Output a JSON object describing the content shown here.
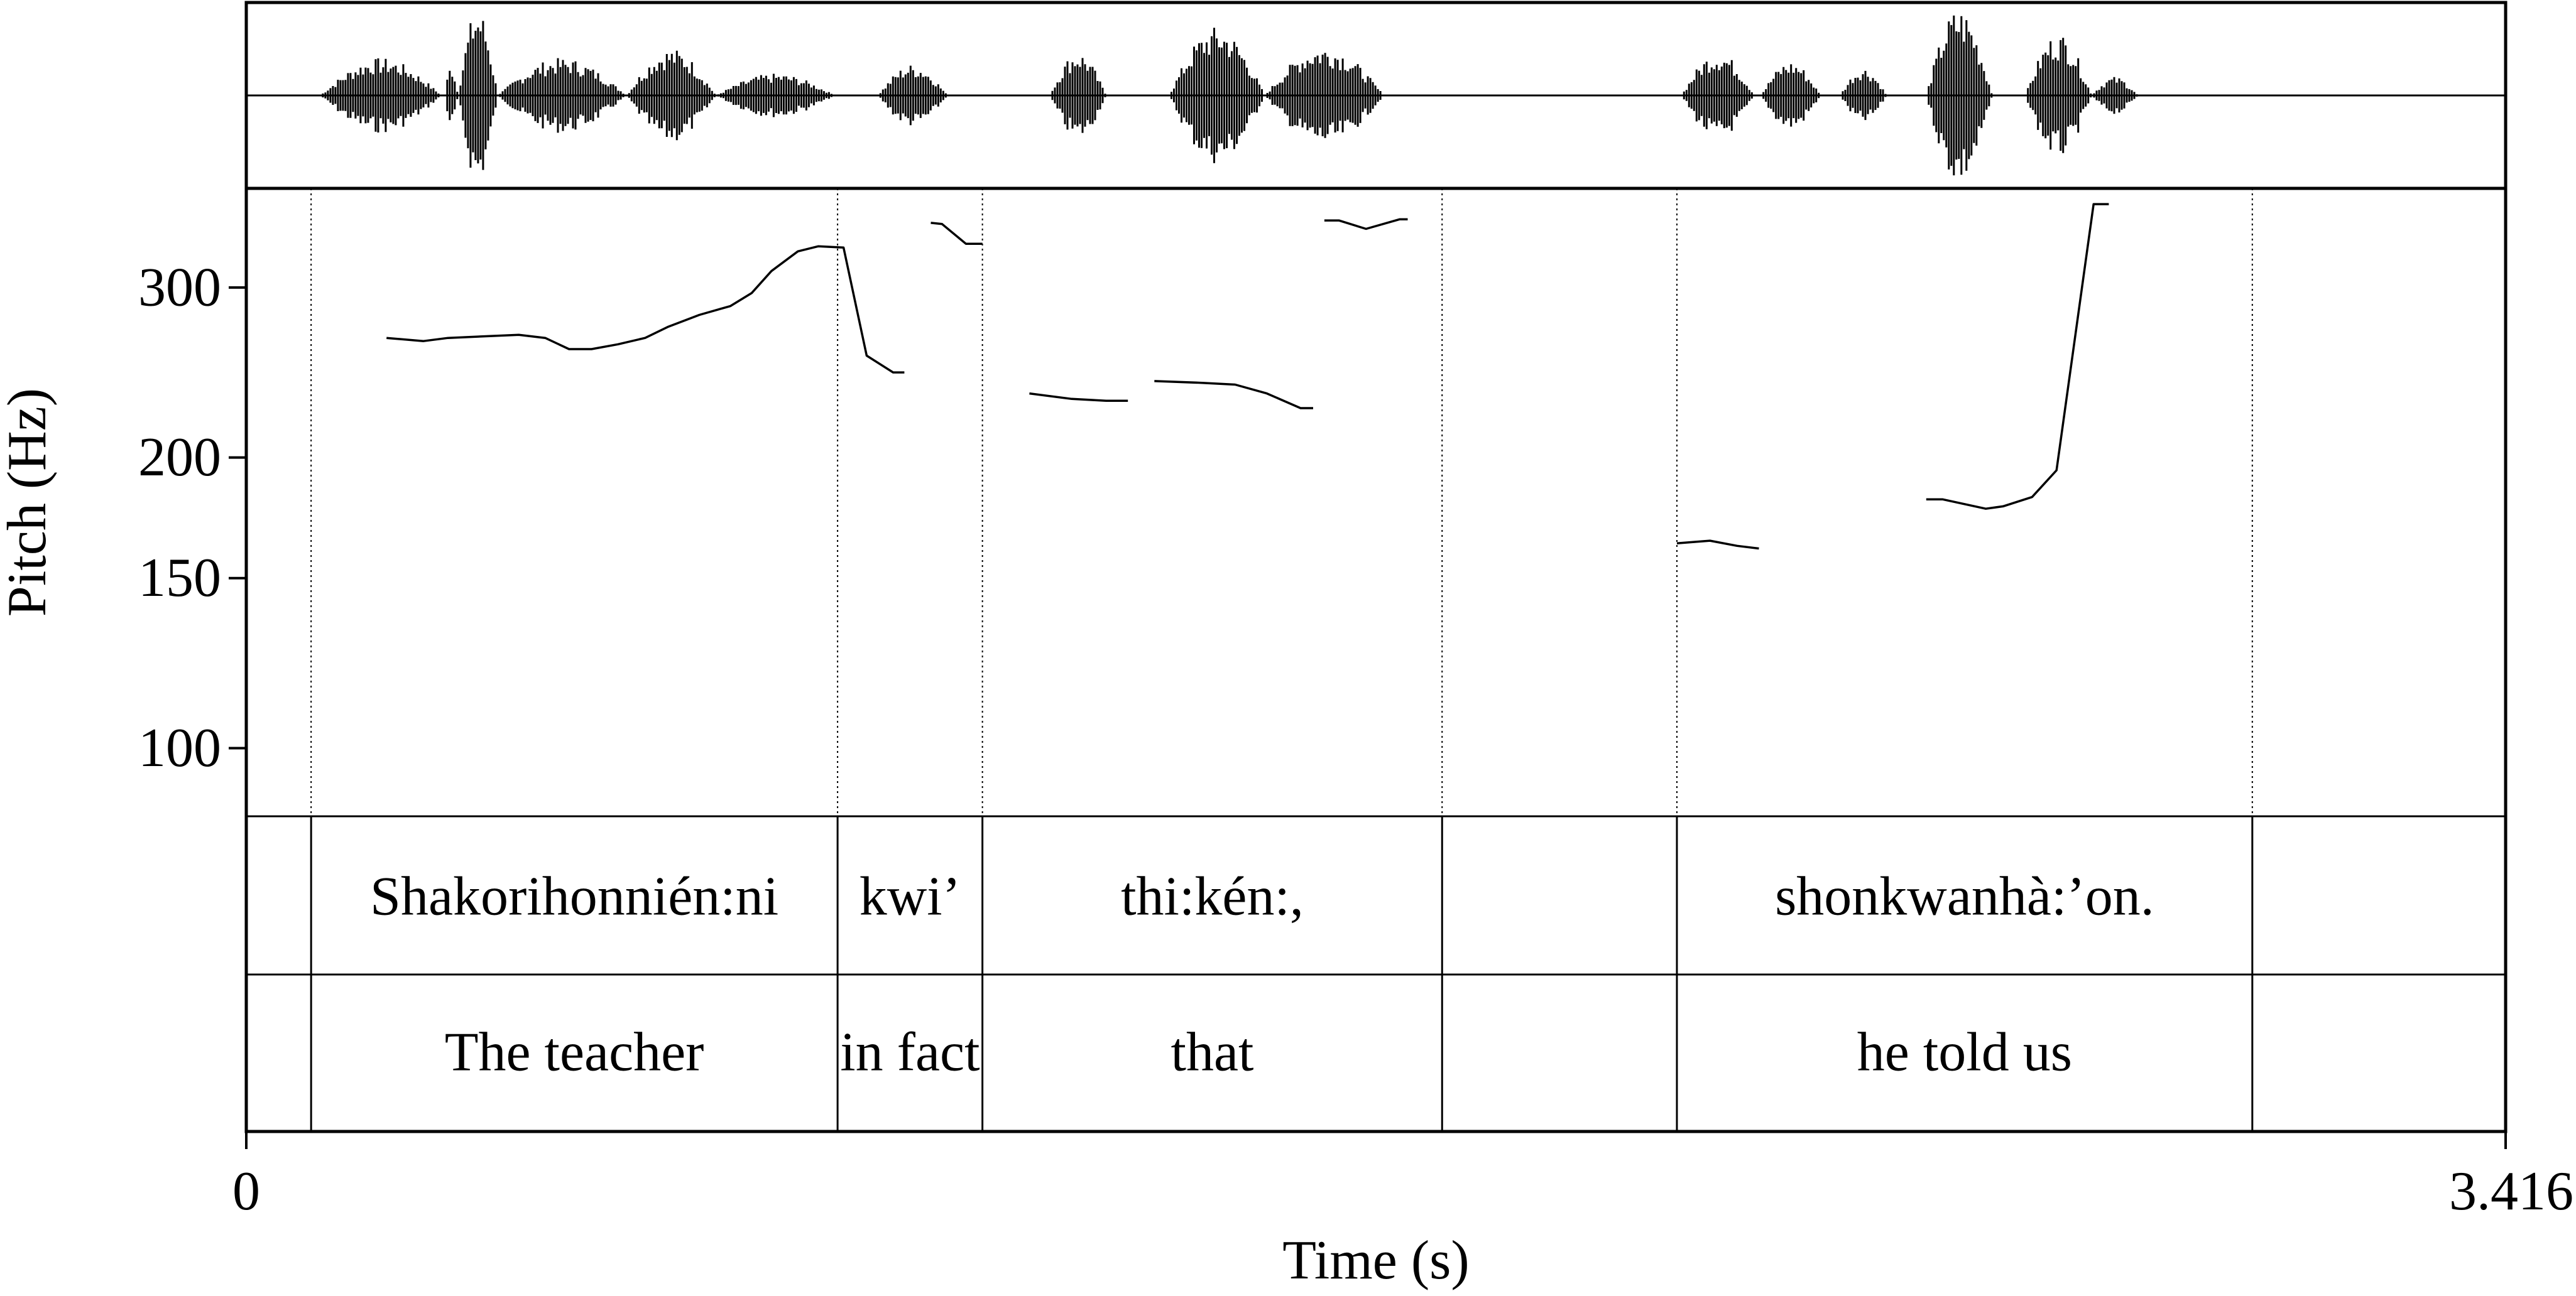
{
  "chart_data": {
    "type": "line",
    "xlabel": "Time (s)",
    "ylabel": "Pitch (Hz)",
    "xlim": [
      0,
      3.416
    ],
    "ylim": [
      85,
      380
    ],
    "y_scale": "log",
    "x_ticks": [
      {
        "value": 0,
        "label": "0"
      },
      {
        "value": 3.416,
        "label": "3.416"
      }
    ],
    "y_ticks": [
      {
        "value": 100,
        "label": "100"
      },
      {
        "value": 150,
        "label": "150"
      },
      {
        "value": 200,
        "label": "200"
      },
      {
        "value": 300,
        "label": "300"
      }
    ],
    "interval_boundaries": [
      0.098,
      0.894,
      1.113,
      1.808,
      2.163,
      3.033
    ],
    "tiers": [
      {
        "intervals": [
          {
            "start": 0.098,
            "end": 0.894,
            "text": "Shakorihonnién:ni"
          },
          {
            "start": 0.894,
            "end": 1.113,
            "text": "kwi’"
          },
          {
            "start": 1.113,
            "end": 1.808,
            "text": "thi:kén:,"
          },
          {
            "start": 2.163,
            "end": 3.033,
            "text": "shonkwanhà:’on."
          }
        ]
      },
      {
        "intervals": [
          {
            "start": 0.098,
            "end": 0.894,
            "text": "The teacher"
          },
          {
            "start": 0.894,
            "end": 1.113,
            "text": "in fact"
          },
          {
            "start": 1.113,
            "end": 1.808,
            "text": "that"
          },
          {
            "start": 2.163,
            "end": 3.033,
            "text": "he told us"
          }
        ]
      }
    ],
    "pitch_segments": [
      [
        [
          0.212,
          266
        ],
        [
          0.268,
          264
        ],
        [
          0.305,
          266
        ],
        [
          0.412,
          268
        ],
        [
          0.452,
          266
        ],
        [
          0.488,
          259
        ],
        [
          0.522,
          259
        ],
        [
          0.562,
          262
        ],
        [
          0.603,
          266
        ],
        [
          0.637,
          273
        ],
        [
          0.685,
          281
        ],
        [
          0.732,
          287
        ],
        [
          0.764,
          296
        ],
        [
          0.794,
          312
        ],
        [
          0.834,
          327
        ],
        [
          0.865,
          331
        ],
        [
          0.903,
          330
        ],
        [
          0.938,
          255
        ],
        [
          0.978,
          245
        ],
        [
          0.995,
          245
        ]
      ],
      [
        [
          1.035,
          350
        ],
        [
          1.052,
          349
        ],
        [
          1.088,
          333
        ],
        [
          1.113,
          333
        ]
      ],
      [
        [
          1.184,
          233
        ],
        [
          1.248,
          230
        ],
        [
          1.3,
          229
        ],
        [
          1.333,
          229
        ]
      ],
      [
        [
          1.373,
          240
        ],
        [
          1.445,
          239
        ],
        [
          1.495,
          238
        ],
        [
          1.543,
          233
        ],
        [
          1.594,
          225
        ],
        [
          1.613,
          225
        ]
      ],
      [
        [
          1.63,
          352
        ],
        [
          1.652,
          352
        ],
        [
          1.693,
          345
        ],
        [
          1.744,
          353
        ],
        [
          1.756,
          353
        ]
      ],
      [
        [
          2.163,
          163
        ],
        [
          2.213,
          164
        ],
        [
          2.254,
          162
        ],
        [
          2.287,
          161
        ]
      ],
      [
        [
          2.54,
          181
        ],
        [
          2.565,
          181
        ],
        [
          2.63,
          177
        ],
        [
          2.656,
          178
        ],
        [
          2.7,
          182
        ],
        [
          2.737,
          194
        ],
        [
          2.793,
          366
        ],
        [
          2.816,
          366
        ]
      ]
    ]
  }
}
